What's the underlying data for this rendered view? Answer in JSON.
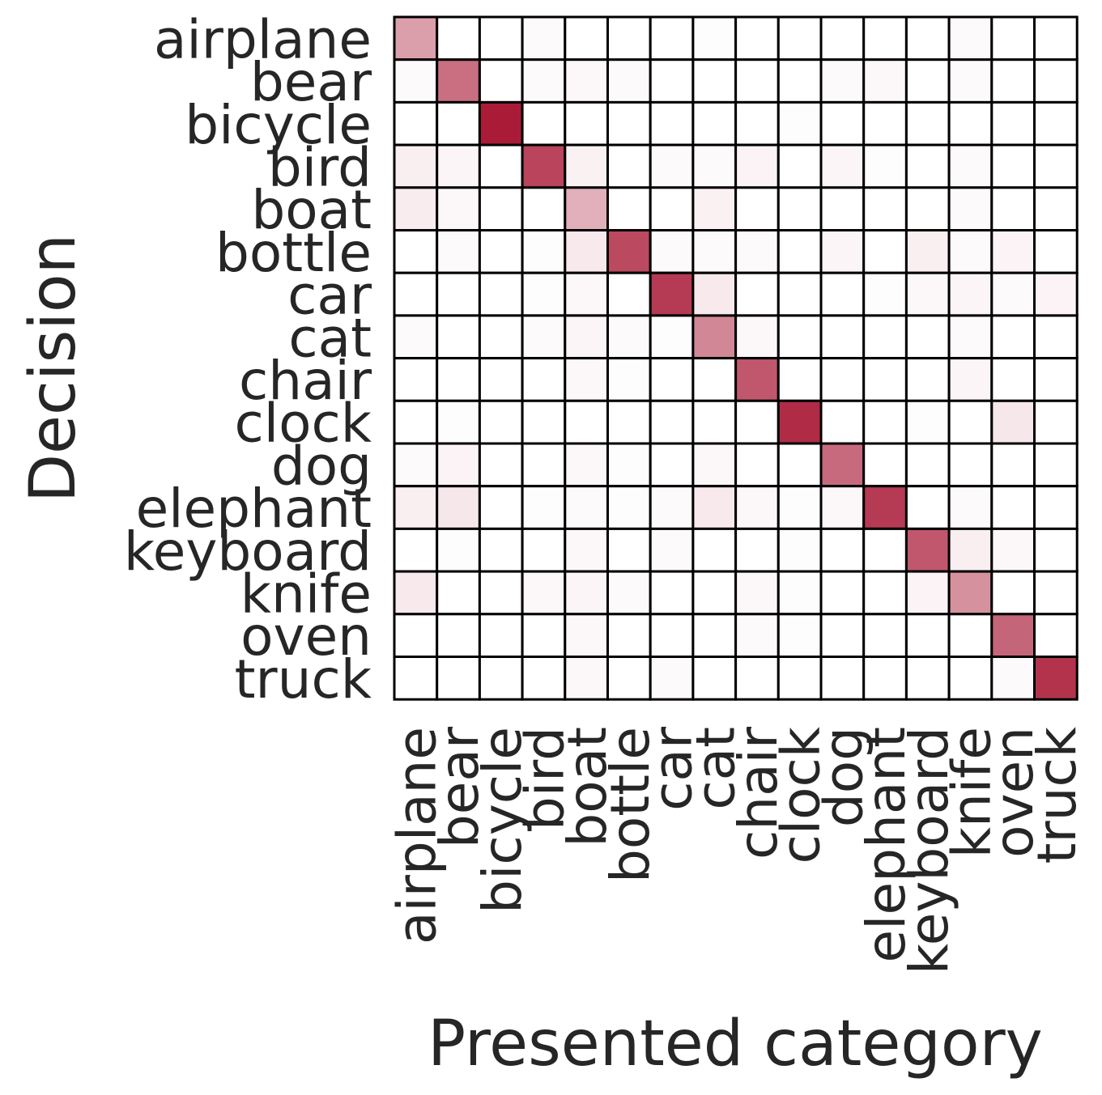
{
  "chart_data": {
    "type": "heatmap",
    "xlabel": "Presented category",
    "ylabel": "Decision",
    "x_categories": [
      "airplane",
      "bear",
      "bicycle",
      "bird",
      "boat",
      "bottle",
      "car",
      "cat",
      "chair",
      "clock",
      "dog",
      "elephant",
      "keyboard",
      "knife",
      "oven",
      "truck"
    ],
    "y_categories": [
      "airplane",
      "bear",
      "bicycle",
      "bird",
      "boat",
      "bottle",
      "car",
      "cat",
      "chair",
      "clock",
      "dog",
      "elephant",
      "keyboard",
      "knife",
      "oven",
      "truck"
    ],
    "value_range": [
      0,
      1
    ],
    "colormap": {
      "low": "#ffffff",
      "high": "#a50f2d"
    },
    "grid": true,
    "gridline_color": "#000000",
    "values": [
      [
        0.4,
        0.0,
        0.0,
        0.02,
        0.0,
        0.0,
        0.0,
        0.01,
        0.0,
        0.0,
        0.0,
        0.0,
        0.0,
        0.02,
        0.0,
        0.0
      ],
      [
        0.02,
        0.6,
        0.0,
        0.02,
        0.03,
        0.02,
        0.0,
        0.0,
        0.0,
        0.0,
        0.02,
        0.03,
        0.0,
        0.02,
        0.0,
        0.0
      ],
      [
        0.0,
        0.0,
        0.95,
        0.0,
        0.0,
        0.0,
        0.0,
        0.0,
        0.0,
        0.01,
        0.0,
        0.0,
        0.0,
        0.0,
        0.0,
        0.0
      ],
      [
        0.07,
        0.04,
        0.0,
        0.78,
        0.06,
        0.0,
        0.02,
        0.02,
        0.05,
        0.0,
        0.04,
        0.01,
        0.0,
        0.02,
        0.0,
        0.0
      ],
      [
        0.08,
        0.03,
        0.0,
        0.0,
        0.33,
        0.0,
        0.0,
        0.06,
        0.0,
        0.0,
        0.0,
        0.0,
        0.0,
        0.02,
        0.0,
        0.0
      ],
      [
        0.0,
        0.02,
        0.0,
        0.01,
        0.09,
        0.76,
        0.02,
        0.02,
        0.02,
        0.0,
        0.04,
        0.0,
        0.07,
        0.02,
        0.05,
        0.0
      ],
      [
        0.0,
        0.0,
        0.0,
        0.01,
        0.03,
        0.0,
        0.82,
        0.09,
        0.0,
        0.0,
        0.0,
        0.01,
        0.03,
        0.04,
        0.02,
        0.05
      ],
      [
        0.02,
        0.0,
        0.0,
        0.02,
        0.04,
        0.02,
        0.01,
        0.5,
        0.03,
        0.0,
        0.0,
        0.0,
        0.0,
        0.02,
        0.0,
        0.0
      ],
      [
        0.0,
        0.0,
        0.0,
        0.0,
        0.03,
        0.01,
        0.0,
        0.0,
        0.7,
        0.0,
        0.0,
        0.0,
        0.0,
        0.04,
        0.0,
        0.0
      ],
      [
        0.0,
        0.01,
        0.0,
        0.0,
        0.0,
        0.0,
        0.0,
        0.0,
        0.0,
        0.88,
        0.0,
        0.0,
        0.01,
        0.0,
        0.1,
        0.0
      ],
      [
        0.02,
        0.05,
        0.0,
        0.0,
        0.03,
        0.01,
        0.0,
        0.03,
        0.0,
        0.0,
        0.62,
        0.0,
        0.0,
        0.0,
        0.0,
        0.0
      ],
      [
        0.07,
        0.1,
        0.0,
        0.01,
        0.02,
        0.01,
        0.02,
        0.09,
        0.03,
        0.01,
        0.03,
        0.82,
        0.0,
        0.02,
        0.0,
        0.0
      ],
      [
        0.0,
        0.01,
        0.0,
        0.0,
        0.03,
        0.0,
        0.02,
        0.0,
        0.0,
        0.01,
        0.0,
        0.0,
        0.7,
        0.07,
        0.03,
        0.0
      ],
      [
        0.09,
        0.0,
        0.0,
        0.03,
        0.04,
        0.02,
        0.0,
        0.0,
        0.03,
        0.01,
        0.0,
        0.0,
        0.05,
        0.46,
        0.0,
        0.0
      ],
      [
        0.0,
        0.0,
        0.0,
        0.0,
        0.03,
        0.0,
        0.0,
        0.0,
        0.02,
        0.01,
        0.0,
        0.0,
        0.0,
        0.0,
        0.64,
        0.0
      ],
      [
        0.0,
        0.0,
        0.0,
        0.0,
        0.03,
        0.0,
        0.02,
        0.0,
        0.0,
        0.0,
        0.0,
        0.0,
        0.0,
        0.0,
        0.02,
        0.85
      ]
    ]
  }
}
